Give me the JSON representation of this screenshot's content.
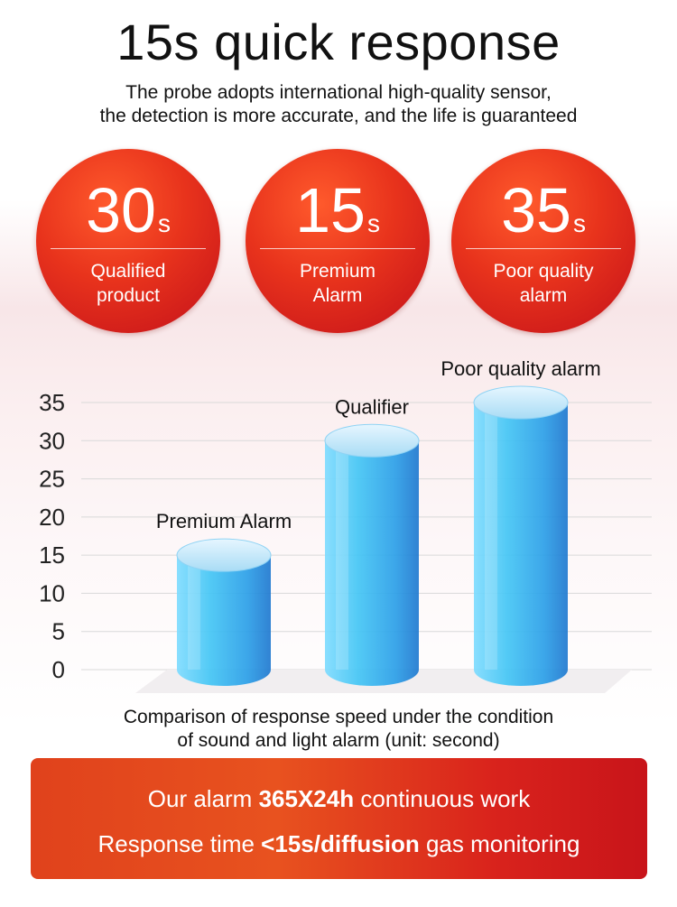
{
  "header": {
    "title": "15s quick response",
    "subtitle_lines": [
      "The probe adopts international high-quality sensor,",
      "the detection is more accurate, and the life is guaranteed"
    ]
  },
  "badges": [
    {
      "value": "30",
      "unit": "s",
      "caption_lines": [
        "Qualified",
        "product"
      ]
    },
    {
      "value": "15",
      "unit": "s",
      "caption_lines": [
        "Premium",
        "Alarm"
      ]
    },
    {
      "value": "35",
      "unit": "s",
      "caption_lines": [
        "Poor quality",
        "alarm"
      ]
    }
  ],
  "chart_data": {
    "type": "bar",
    "categories": [
      "Premium Alarm",
      "Qualifier",
      "Poor quality alarm"
    ],
    "values": [
      15,
      30,
      35
    ],
    "ylim": [
      0,
      35
    ],
    "yticks": [
      0,
      5,
      10,
      15,
      20,
      25,
      30,
      35
    ],
    "grid": true,
    "xlabel": "",
    "ylabel": "",
    "title": "",
    "bar_colors": [
      "#27c9f0",
      "#2aa8ee",
      "#2f7fd6"
    ]
  },
  "caption_lines": [
    "Comparison of response speed under the condition",
    "of sound and light alarm (unit: second)"
  ],
  "banner": {
    "line1_pre": "Our alarm ",
    "line1_bold": "365X24h",
    "line1_post": " continuous work",
    "line2_pre": "Response time ",
    "line2_bold": "<15s/diffusion",
    "line2_post": " gas monitoring"
  },
  "colors": {
    "badge_red": "#d8221b",
    "banner_red": "#e0421c"
  }
}
